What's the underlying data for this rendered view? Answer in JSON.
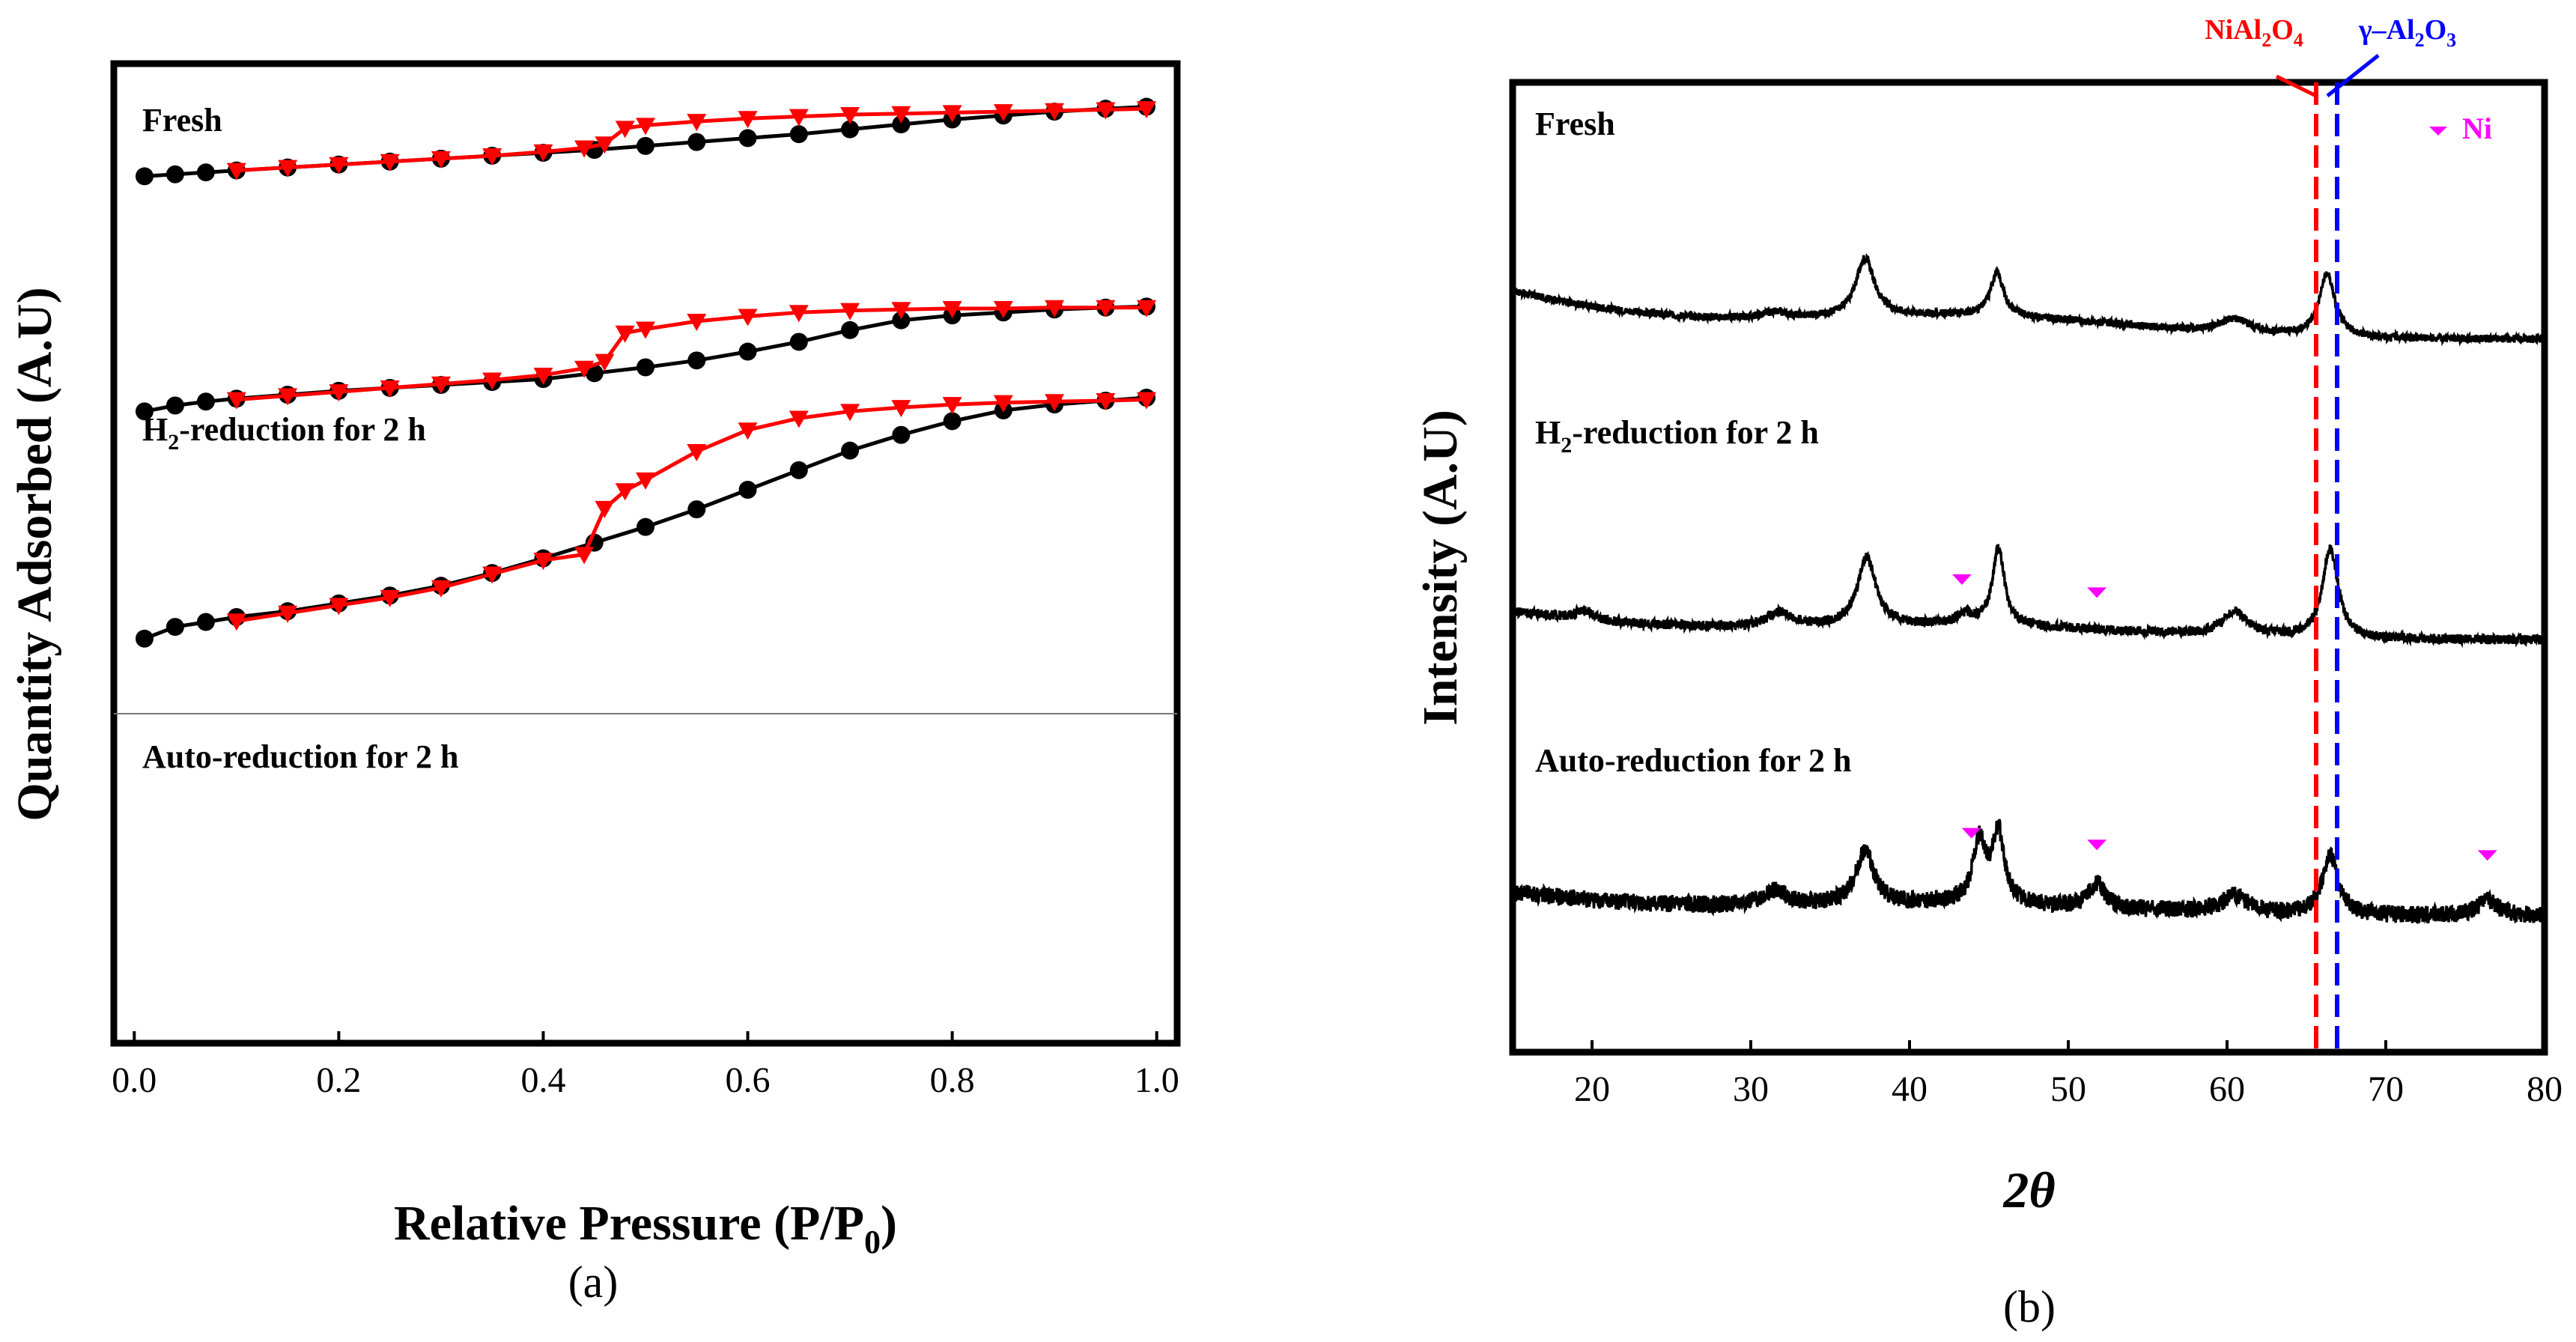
{
  "colors": {
    "adsorption": "#000000",
    "desorption": "#ff0000",
    "nial2o4_line": "#ff0000",
    "al2o3_line": "#0000ff",
    "ni_marker": "#ff00ff"
  },
  "panel_a": {
    "caption": "(a)",
    "xlabel_main": "Relative Pressure (P/P",
    "xlabel_sub": "0",
    "xlabel_close": ")",
    "ylabel": "Quantity Adsorbed (A.U)",
    "label_fresh": "Fresh",
    "label_h2_pre": "H",
    "label_h2_sub": "2",
    "label_h2_post": "-reduction for 2 h",
    "label_auto": "Auto-reduction for 2 h",
    "xticks": [
      "0.0",
      "0.2",
      "0.4",
      "0.6",
      "0.8",
      "1.0"
    ]
  },
  "panel_b": {
    "caption": "(b)",
    "xlabel": "2θ",
    "ylabel": "Intensity (A.U)",
    "label_fresh": "Fresh",
    "label_h2_pre": "H",
    "label_h2_sub": "2",
    "label_h2_post": "-reduction for 2 h",
    "label_auto": "Auto-reduction for 2 h",
    "xticks": [
      "20",
      "30",
      "40",
      "50",
      "60",
      "70",
      "80"
    ],
    "legend_ni": "Ni",
    "ref_nial2o4": {
      "p1": "NiAl",
      "s1": "2",
      "p2": "O",
      "s2": "4"
    },
    "ref_al2o3": {
      "p1": "γ–Al",
      "s1": "2",
      "p2": "O",
      "s2": "3"
    }
  },
  "chart_data": [
    {
      "type": "line",
      "title": "(a)",
      "xlabel": "Relative Pressure (P/P0)",
      "ylabel": "Quantity Adsorbed (A.U)",
      "xlim": [
        -0.02,
        1.02
      ],
      "ylim": [
        0,
        1
      ],
      "series": [
        {
          "name": "Fresh adsorption",
          "x": [
            0.01,
            0.04,
            0.07,
            0.1,
            0.15,
            0.2,
            0.25,
            0.3,
            0.35,
            0.4,
            0.45,
            0.5,
            0.55,
            0.6,
            0.65,
            0.7,
            0.75,
            0.8,
            0.85,
            0.9,
            0.95,
            0.99
          ],
          "y": [
            0.885,
            0.887,
            0.889,
            0.891,
            0.894,
            0.897,
            0.9,
            0.903,
            0.906,
            0.909,
            0.912,
            0.916,
            0.92,
            0.924,
            0.928,
            0.933,
            0.938,
            0.943,
            0.947,
            0.951,
            0.954,
            0.956
          ]
        },
        {
          "name": "Fresh desorption",
          "x": [
            0.99,
            0.95,
            0.9,
            0.85,
            0.8,
            0.75,
            0.7,
            0.65,
            0.6,
            0.55,
            0.5,
            0.48,
            0.46,
            0.44,
            0.4,
            0.35,
            0.3,
            0.25,
            0.2,
            0.15,
            0.1
          ],
          "y": [
            0.954,
            0.953,
            0.952,
            0.951,
            0.95,
            0.949,
            0.948,
            0.946,
            0.944,
            0.941,
            0.937,
            0.934,
            0.918,
            0.914,
            0.91,
            0.906,
            0.903,
            0.9,
            0.897,
            0.894,
            0.891
          ]
        },
        {
          "name": "H2-reduction adsorption",
          "x": [
            0.01,
            0.04,
            0.07,
            0.1,
            0.15,
            0.2,
            0.25,
            0.3,
            0.35,
            0.4,
            0.45,
            0.5,
            0.55,
            0.6,
            0.65,
            0.7,
            0.75,
            0.8,
            0.85,
            0.9,
            0.95,
            0.99
          ],
          "y": [
            0.645,
            0.651,
            0.655,
            0.658,
            0.662,
            0.666,
            0.669,
            0.672,
            0.675,
            0.678,
            0.684,
            0.69,
            0.697,
            0.706,
            0.716,
            0.728,
            0.738,
            0.743,
            0.746,
            0.749,
            0.751,
            0.752
          ]
        },
        {
          "name": "H2-reduction desorption",
          "x": [
            0.99,
            0.95,
            0.9,
            0.85,
            0.8,
            0.75,
            0.7,
            0.65,
            0.6,
            0.55,
            0.5,
            0.48,
            0.46,
            0.44,
            0.4,
            0.35,
            0.3,
            0.25,
            0.2,
            0.15,
            0.1
          ],
          "y": [
            0.751,
            0.751,
            0.751,
            0.75,
            0.75,
            0.749,
            0.748,
            0.746,
            0.742,
            0.737,
            0.729,
            0.725,
            0.696,
            0.689,
            0.682,
            0.677,
            0.673,
            0.669,
            0.665,
            0.661,
            0.657
          ]
        },
        {
          "name": "Auto-reduction adsorption",
          "x": [
            0.01,
            0.04,
            0.07,
            0.1,
            0.15,
            0.2,
            0.25,
            0.3,
            0.35,
            0.4,
            0.45,
            0.5,
            0.55,
            0.6,
            0.65,
            0.7,
            0.75,
            0.8,
            0.85,
            0.9,
            0.95,
            0.99
          ],
          "y": [
            0.413,
            0.425,
            0.43,
            0.435,
            0.441,
            0.449,
            0.457,
            0.467,
            0.48,
            0.495,
            0.511,
            0.527,
            0.545,
            0.565,
            0.585,
            0.605,
            0.621,
            0.635,
            0.646,
            0.652,
            0.656,
            0.659
          ]
        },
        {
          "name": "Auto-reduction desorption",
          "x": [
            0.99,
            0.95,
            0.9,
            0.85,
            0.8,
            0.75,
            0.7,
            0.65,
            0.6,
            0.55,
            0.5,
            0.48,
            0.46,
            0.44,
            0.4,
            0.35,
            0.3,
            0.25,
            0.2,
            0.15,
            0.1
          ],
          "y": [
            0.657,
            0.656,
            0.655,
            0.654,
            0.652,
            0.649,
            0.645,
            0.638,
            0.626,
            0.604,
            0.575,
            0.564,
            0.546,
            0.499,
            0.493,
            0.479,
            0.465,
            0.455,
            0.447,
            0.439,
            0.431
          ]
        }
      ]
    },
    {
      "type": "line",
      "title": "(b)",
      "xlabel": "2θ",
      "ylabel": "Intensity (A.U)",
      "xlim": [
        15,
        80
      ],
      "ylim": [
        0,
        1
      ],
      "reference_lines": [
        {
          "label": "NiAl2O4",
          "x": 65.5,
          "style": "dashed",
          "color": "#ff0000"
        },
        {
          "label": "γ-Al2O3",
          "x": 66.8,
          "style": "dashed",
          "color": "#0000ff"
        }
      ],
      "series": [
        {
          "name": "Fresh",
          "baseline": 0.735,
          "decay": 0.05,
          "noise": 0.004,
          "peaks": [
            [
              31.5,
              0.006,
              1.0
            ],
            [
              37.2,
              0.06,
              0.7
            ],
            [
              45.5,
              0.045,
              0.5
            ],
            [
              60.5,
              0.015,
              1.2
            ],
            [
              66.3,
              0.065,
              0.6
            ]
          ]
        },
        {
          "name": "H2-reduction for 2 h",
          "baseline": 0.425,
          "decay": 0.03,
          "noise": 0.005,
          "peaks": [
            [
              19.5,
              0.01,
              0.6
            ],
            [
              31.8,
              0.015,
              1.0
            ],
            [
              37.3,
              0.07,
              0.7
            ],
            [
              43.5,
              0.01,
              0.6
            ],
            [
              45.6,
              0.08,
              0.45
            ],
            [
              60.5,
              0.025,
              1.0
            ],
            [
              66.5,
              0.092,
              0.6
            ]
          ],
          "ni_markers": [
            43.3,
            51.8
          ]
        },
        {
          "name": "Auto-reduction for 2 h",
          "baseline": 0.14,
          "decay": 0.025,
          "noise": 0.009,
          "peaks": [
            [
              31.5,
              0.015,
              1.0
            ],
            [
              37.2,
              0.055,
              0.7
            ],
            [
              44.4,
              0.063,
              0.5
            ],
            [
              45.6,
              0.072,
              0.45
            ],
            [
              51.8,
              0.025,
              0.6
            ],
            [
              60.5,
              0.018,
              1.0
            ],
            [
              66.5,
              0.062,
              0.6
            ],
            [
              76.4,
              0.016,
              0.8
            ]
          ],
          "ni_markers": [
            43.9,
            51.8,
            76.4
          ]
        }
      ]
    }
  ]
}
